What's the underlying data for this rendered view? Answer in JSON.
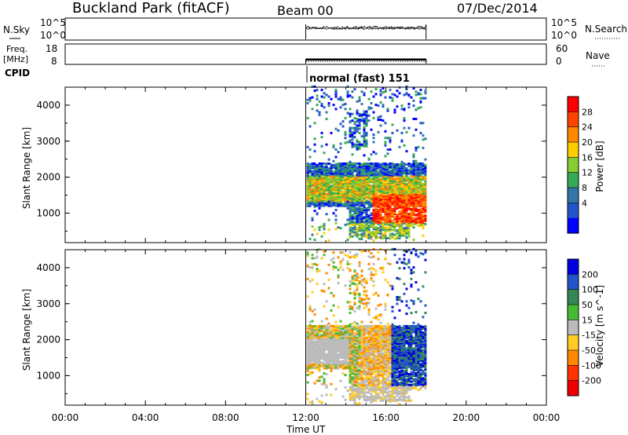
{
  "header": {
    "station": "Buckland Park (fitACF)",
    "beam": "Beam 00",
    "date": "07/Dec/2014"
  },
  "panels": {
    "nsky": {
      "left_label": "N.Sky",
      "tick_top": "10^5",
      "tick_bottom": "10^0",
      "right_ticks": [
        "10^5",
        "10^0"
      ],
      "right_label": "N.Search"
    },
    "freq": {
      "left_label_1": "Freq.",
      "left_label_2": "[MHz]",
      "left_ticks": [
        "18",
        "8"
      ],
      "right_ticks": [
        "60",
        "0"
      ],
      "right_label": "Nave"
    },
    "cpid": {
      "label": "CPID",
      "mode": "normal (fast) 151"
    }
  },
  "chart_data": [
    {
      "type": "heatmap",
      "title": "",
      "xlabel": "Time UT",
      "ylabel": "Slant Range [km]",
      "x_ticks": [
        "00:00",
        "04:00",
        "08:00",
        "12:00",
        "16:00",
        "20:00",
        "00:00"
      ],
      "x_range_hours": [
        0,
        24
      ],
      "y_ticks": [
        1000,
        2000,
        3000,
        4000
      ],
      "y_range_km": [
        180,
        4500
      ],
      "data_window_hours": [
        12,
        18
      ],
      "colorbar": {
        "label": "Power [dB]",
        "ticks": [
          "28",
          "24",
          "20",
          "16",
          "12",
          "8",
          "4"
        ],
        "colors": [
          "#ff0000",
          "#ff4400",
          "#ff8800",
          "#ffcc00",
          "#88cc33",
          "#33aa55",
          "#3377aa",
          "#2255cc",
          "#0000ff"
        ]
      }
    },
    {
      "type": "heatmap",
      "title": "",
      "xlabel": "Time UT",
      "ylabel": "Slant Range [km]",
      "x_ticks": [
        "00:00",
        "04:00",
        "08:00",
        "12:00",
        "16:00",
        "20:00",
        "00:00"
      ],
      "x_range_hours": [
        0,
        24
      ],
      "y_ticks": [
        1000,
        2000,
        3000,
        4000
      ],
      "y_range_km": [
        180,
        4500
      ],
      "data_window_hours": [
        12,
        18
      ],
      "colorbar": {
        "label": "Velocity [m s^-1]",
        "ticks": [
          "200",
          "100",
          "50",
          "15",
          "-15",
          "-50",
          "-100",
          "-200"
        ],
        "colors": [
          "#0000dd",
          "#2255cc",
          "#338855",
          "#44bb33",
          "#bbbbbb",
          "#ffcc22",
          "#ff8800",
          "#ff3300",
          "#ee0000"
        ]
      }
    }
  ],
  "axis": {
    "xlabel": "Time UT"
  }
}
